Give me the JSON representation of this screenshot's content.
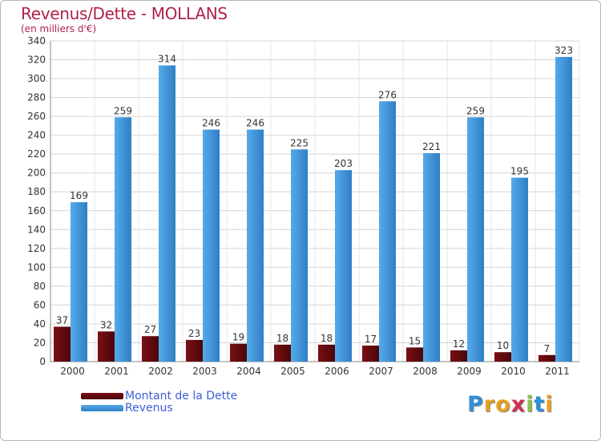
{
  "header": {
    "title": "Revenus/Dette - MOLLANS",
    "subtitle": "(en milliers d'€)"
  },
  "legend": {
    "debt_label": "Montant de la Dette",
    "revenue_label": "Revenus"
  },
  "logo": {
    "letters": [
      "P",
      "r",
      "o",
      "x",
      "i",
      "t",
      "i"
    ],
    "colors": [
      "#2f8fd8",
      "#e8a020",
      "#e8a020",
      "#d03050",
      "#8bc34a",
      "#2f8fd8",
      "#e8a020"
    ]
  },
  "colors": {
    "debt": "#7a0f14",
    "debt_dark": "#4a0608",
    "revenue": "#55aaea",
    "revenue_dark": "#2f7fc4",
    "title": "#b0224a",
    "legend_text": "#3b5ed6"
  },
  "chart_data": {
    "type": "bar",
    "title": "Revenus/Dette - MOLLANS",
    "ylabel": "(en milliers d'€)",
    "xlabel": "",
    "categories": [
      "2000",
      "2001",
      "2002",
      "2003",
      "2004",
      "2005",
      "2006",
      "2007",
      "2008",
      "2009",
      "2010",
      "2011"
    ],
    "series": [
      {
        "name": "Montant de la Dette",
        "values": [
          37,
          32,
          27,
          23,
          19,
          18,
          18,
          17,
          15,
          12,
          10,
          7
        ]
      },
      {
        "name": "Revenus",
        "values": [
          169,
          259,
          314,
          246,
          246,
          225,
          203,
          276,
          221,
          259,
          195,
          323
        ]
      }
    ],
    "ylim": [
      0,
      340
    ],
    "ytick_step": 20,
    "grid": true,
    "legend_position": "bottom-left"
  }
}
